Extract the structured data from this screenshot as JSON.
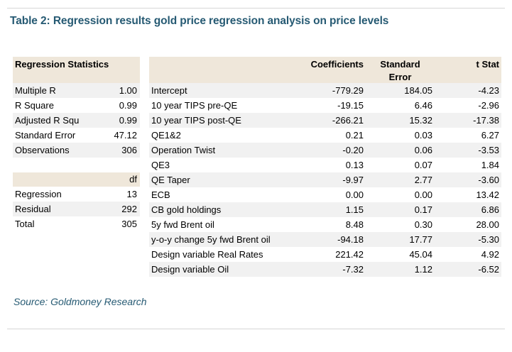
{
  "page": {
    "title": "Table 2: Regression results gold price regression analysis on price levels",
    "source": "Source: Goldmoney Research"
  },
  "colors": {
    "accent_teal": "#265a73",
    "header_beige": "#efe7da",
    "row_stripe_gray": "#f1f1f1",
    "divider_gray": "#d6d6d6"
  },
  "regression_statistics": {
    "header": "Regression Statistics",
    "rows": [
      {
        "label": "Multiple R",
        "value": "1.00"
      },
      {
        "label": "R Square",
        "value": "0.99"
      },
      {
        "label": "Adjusted R Squ",
        "value": "0.99"
      },
      {
        "label": "Standard Error",
        "value": "47.12"
      },
      {
        "label": "Observations",
        "value": "306"
      }
    ]
  },
  "anova": {
    "header": "df",
    "rows": [
      {
        "label": "Regression",
        "value": "13"
      },
      {
        "label": "Residual",
        "value": "292"
      },
      {
        "label": "Total",
        "value": "305"
      }
    ]
  },
  "coefficients_table": {
    "columns": [
      "Coefficients",
      "Standard Error",
      "t Stat"
    ],
    "rows": [
      {
        "label": "Intercept",
        "coefficient": "-779.29",
        "standard_error": "184.05",
        "t_stat": "-4.23"
      },
      {
        "label": "10 year TIPS pre-QE",
        "coefficient": "-19.15",
        "standard_error": "6.46",
        "t_stat": "-2.96"
      },
      {
        "label": "10 year TIPS post-QE",
        "coefficient": "-266.21",
        "standard_error": "15.32",
        "t_stat": "-17.38"
      },
      {
        "label": "QE1&2",
        "coefficient": "0.21",
        "standard_error": "0.03",
        "t_stat": "6.27"
      },
      {
        "label": "Operation Twist",
        "coefficient": "-0.20",
        "standard_error": "0.06",
        "t_stat": "-3.53"
      },
      {
        "label": "QE3",
        "coefficient": "0.13",
        "standard_error": "0.07",
        "t_stat": "1.84"
      },
      {
        "label": "QE Taper",
        "coefficient": "-9.97",
        "standard_error": "2.77",
        "t_stat": "-3.60"
      },
      {
        "label": "ECB",
        "coefficient": "0.00",
        "standard_error": "0.00",
        "t_stat": "13.42"
      },
      {
        "label": "CB gold holdings",
        "coefficient": "1.15",
        "standard_error": "0.17",
        "t_stat": "6.86"
      },
      {
        "label": "5y fwd Brent oil",
        "coefficient": "8.48",
        "standard_error": "0.30",
        "t_stat": "28.00"
      },
      {
        "label": "y-o-y change 5y fwd Brent oil",
        "coefficient": "-94.18",
        "standard_error": "17.77",
        "t_stat": "-5.30"
      },
      {
        "label": "Design variable Real Rates",
        "coefficient": "221.42",
        "standard_error": "45.04",
        "t_stat": "4.92"
      },
      {
        "label": "Design variable Oil",
        "coefficient": "-7.32",
        "standard_error": "1.12",
        "t_stat": "-6.52"
      }
    ]
  }
}
